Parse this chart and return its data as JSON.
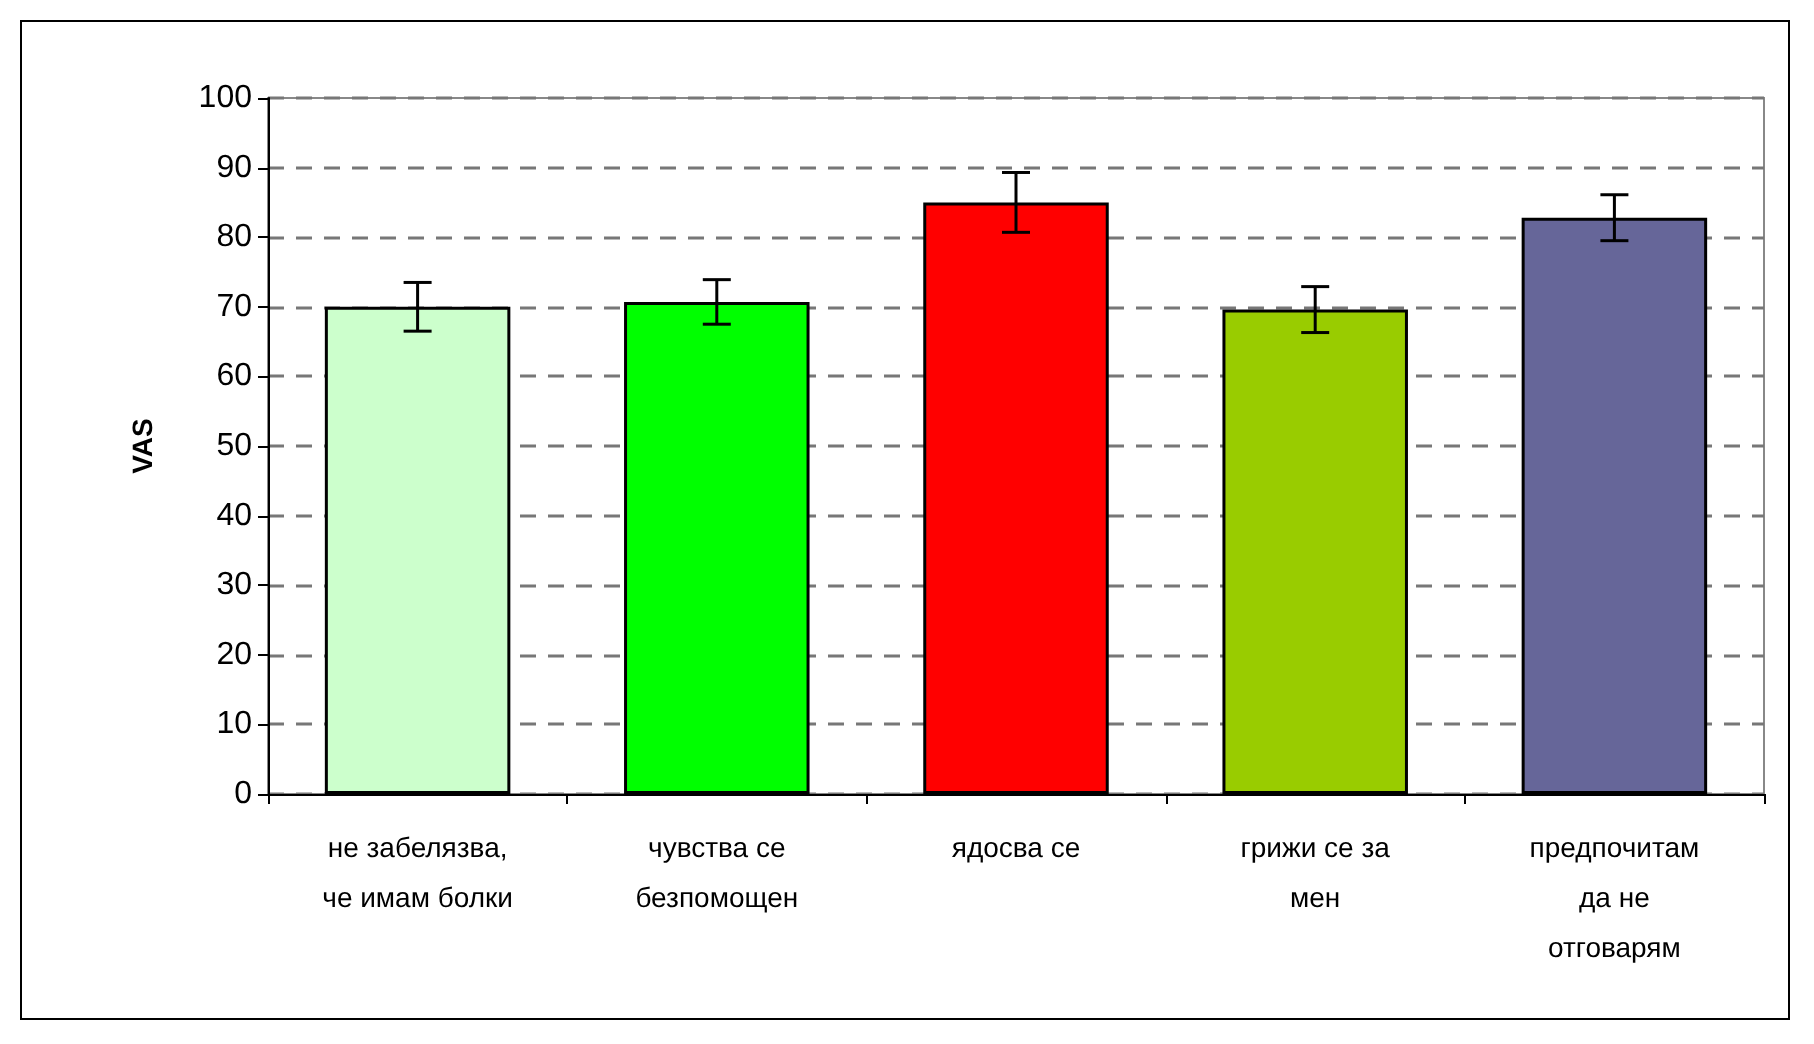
{
  "chart_data": {
    "type": "bar",
    "ylabel": "VAS",
    "categories": [
      "не забелязва, че имам болки",
      "чувства се безпомощен",
      "ядосва се",
      "грижи се за мен",
      "предпочитам да не отговарям"
    ],
    "values": [
      70,
      70.7,
      85,
      69.6,
      82.8
    ],
    "errors": [
      3.5,
      3.2,
      4.3,
      3.3,
      3.3
    ],
    "colors": [
      "#ccffcc",
      "#00ff00",
      "#ff0000",
      "#99cc00",
      "#666699"
    ],
    "ylim": [
      0,
      100
    ],
    "yticks": [
      0,
      10,
      20,
      30,
      40,
      50,
      60,
      70,
      80,
      90,
      100
    ],
    "grid": "y"
  }
}
